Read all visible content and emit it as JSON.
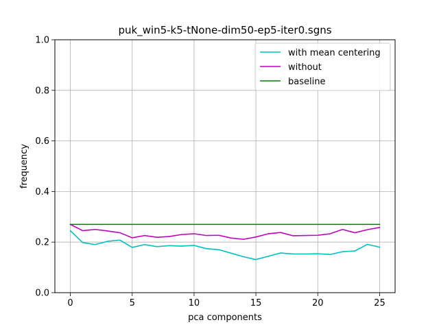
{
  "chart_data": {
    "type": "line",
    "title": "puk_win5-k5-tNone-dim50-ep5-iter0.sgns",
    "xlabel": "pca components",
    "ylabel": "frequency",
    "xlim": [
      -1.25,
      26.25
    ],
    "ylim": [
      0.0,
      1.0
    ],
    "xticks": [
      0,
      5,
      10,
      15,
      20,
      25
    ],
    "xtick_labels": [
      "0",
      "5",
      "10",
      "15",
      "20",
      "25"
    ],
    "yticks": [
      0.0,
      0.2,
      0.4,
      0.6,
      0.8,
      1.0
    ],
    "ytick_labels": [
      "0.0",
      "0.2",
      "0.4",
      "0.6",
      "0.8",
      "1.0"
    ],
    "grid": true,
    "legend_position": "top-right",
    "x": [
      0,
      1,
      2,
      3,
      4,
      5,
      6,
      7,
      8,
      9,
      10,
      11,
      12,
      13,
      14,
      15,
      16,
      17,
      18,
      19,
      20,
      21,
      22,
      23,
      24,
      25
    ],
    "series": [
      {
        "name": "with mean centering",
        "color": "#00bfbf",
        "values": [
          0.245,
          0.198,
          0.19,
          0.203,
          0.208,
          0.179,
          0.19,
          0.182,
          0.186,
          0.184,
          0.187,
          0.174,
          0.17,
          0.156,
          0.142,
          0.131,
          0.144,
          0.157,
          0.153,
          0.153,
          0.154,
          0.151,
          0.162,
          0.165,
          0.191,
          0.18
        ]
      },
      {
        "name": "without",
        "color": "#bf00bf",
        "values": [
          0.27,
          0.245,
          0.25,
          0.244,
          0.237,
          0.217,
          0.226,
          0.219,
          0.222,
          0.23,
          0.233,
          0.226,
          0.227,
          0.216,
          0.211,
          0.22,
          0.233,
          0.238,
          0.225,
          0.226,
          0.227,
          0.233,
          0.25,
          0.237,
          0.249,
          0.258
        ]
      },
      {
        "name": "baseline",
        "color": "#008000",
        "values": [
          0.27,
          0.27,
          0.27,
          0.27,
          0.27,
          0.27,
          0.27,
          0.27,
          0.27,
          0.27,
          0.27,
          0.27,
          0.27,
          0.27,
          0.27,
          0.27,
          0.27,
          0.27,
          0.27,
          0.27,
          0.27,
          0.27,
          0.27,
          0.27,
          0.27,
          0.27
        ]
      }
    ]
  }
}
